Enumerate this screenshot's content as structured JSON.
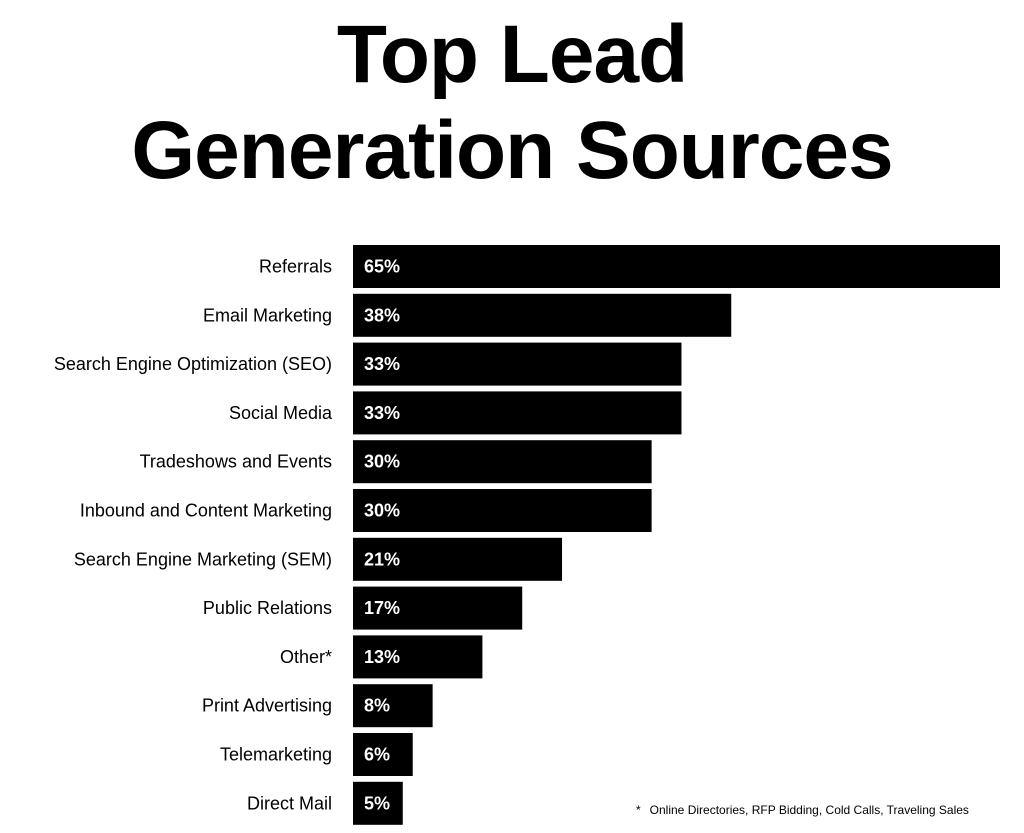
{
  "chart_data": {
    "type": "bar",
    "orientation": "horizontal",
    "title": "Top Lead Generation Sources",
    "title_lines": [
      "Top Lead",
      "Generation Sources"
    ],
    "categories": [
      "Referrals",
      "Email Marketing",
      "Search Engine Optimization (SEO)",
      "Social Media",
      "Tradeshows and Events",
      "Inbound and Content Marketing",
      "Search Engine Marketing (SEM)",
      "Public Relations",
      "Other*",
      "Print Advertising",
      "Telemarketing",
      "Direct Mail"
    ],
    "values": [
      65,
      38,
      33,
      33,
      30,
      30,
      21,
      17,
      13,
      8,
      6,
      5
    ],
    "value_labels": [
      "65%",
      "38%",
      "33%",
      "33%",
      "30%",
      "30%",
      "21%",
      "17%",
      "13%",
      "8%",
      "6%",
      "5%"
    ],
    "unit": "%",
    "xlim": [
      0,
      65
    ],
    "grid": false,
    "bar_color": "#000000",
    "label_color": "#ffffff",
    "footnote": {
      "mark": "*",
      "text": "Online Directories, RFP Bidding, Cold Calls, Traveling Sales"
    }
  }
}
